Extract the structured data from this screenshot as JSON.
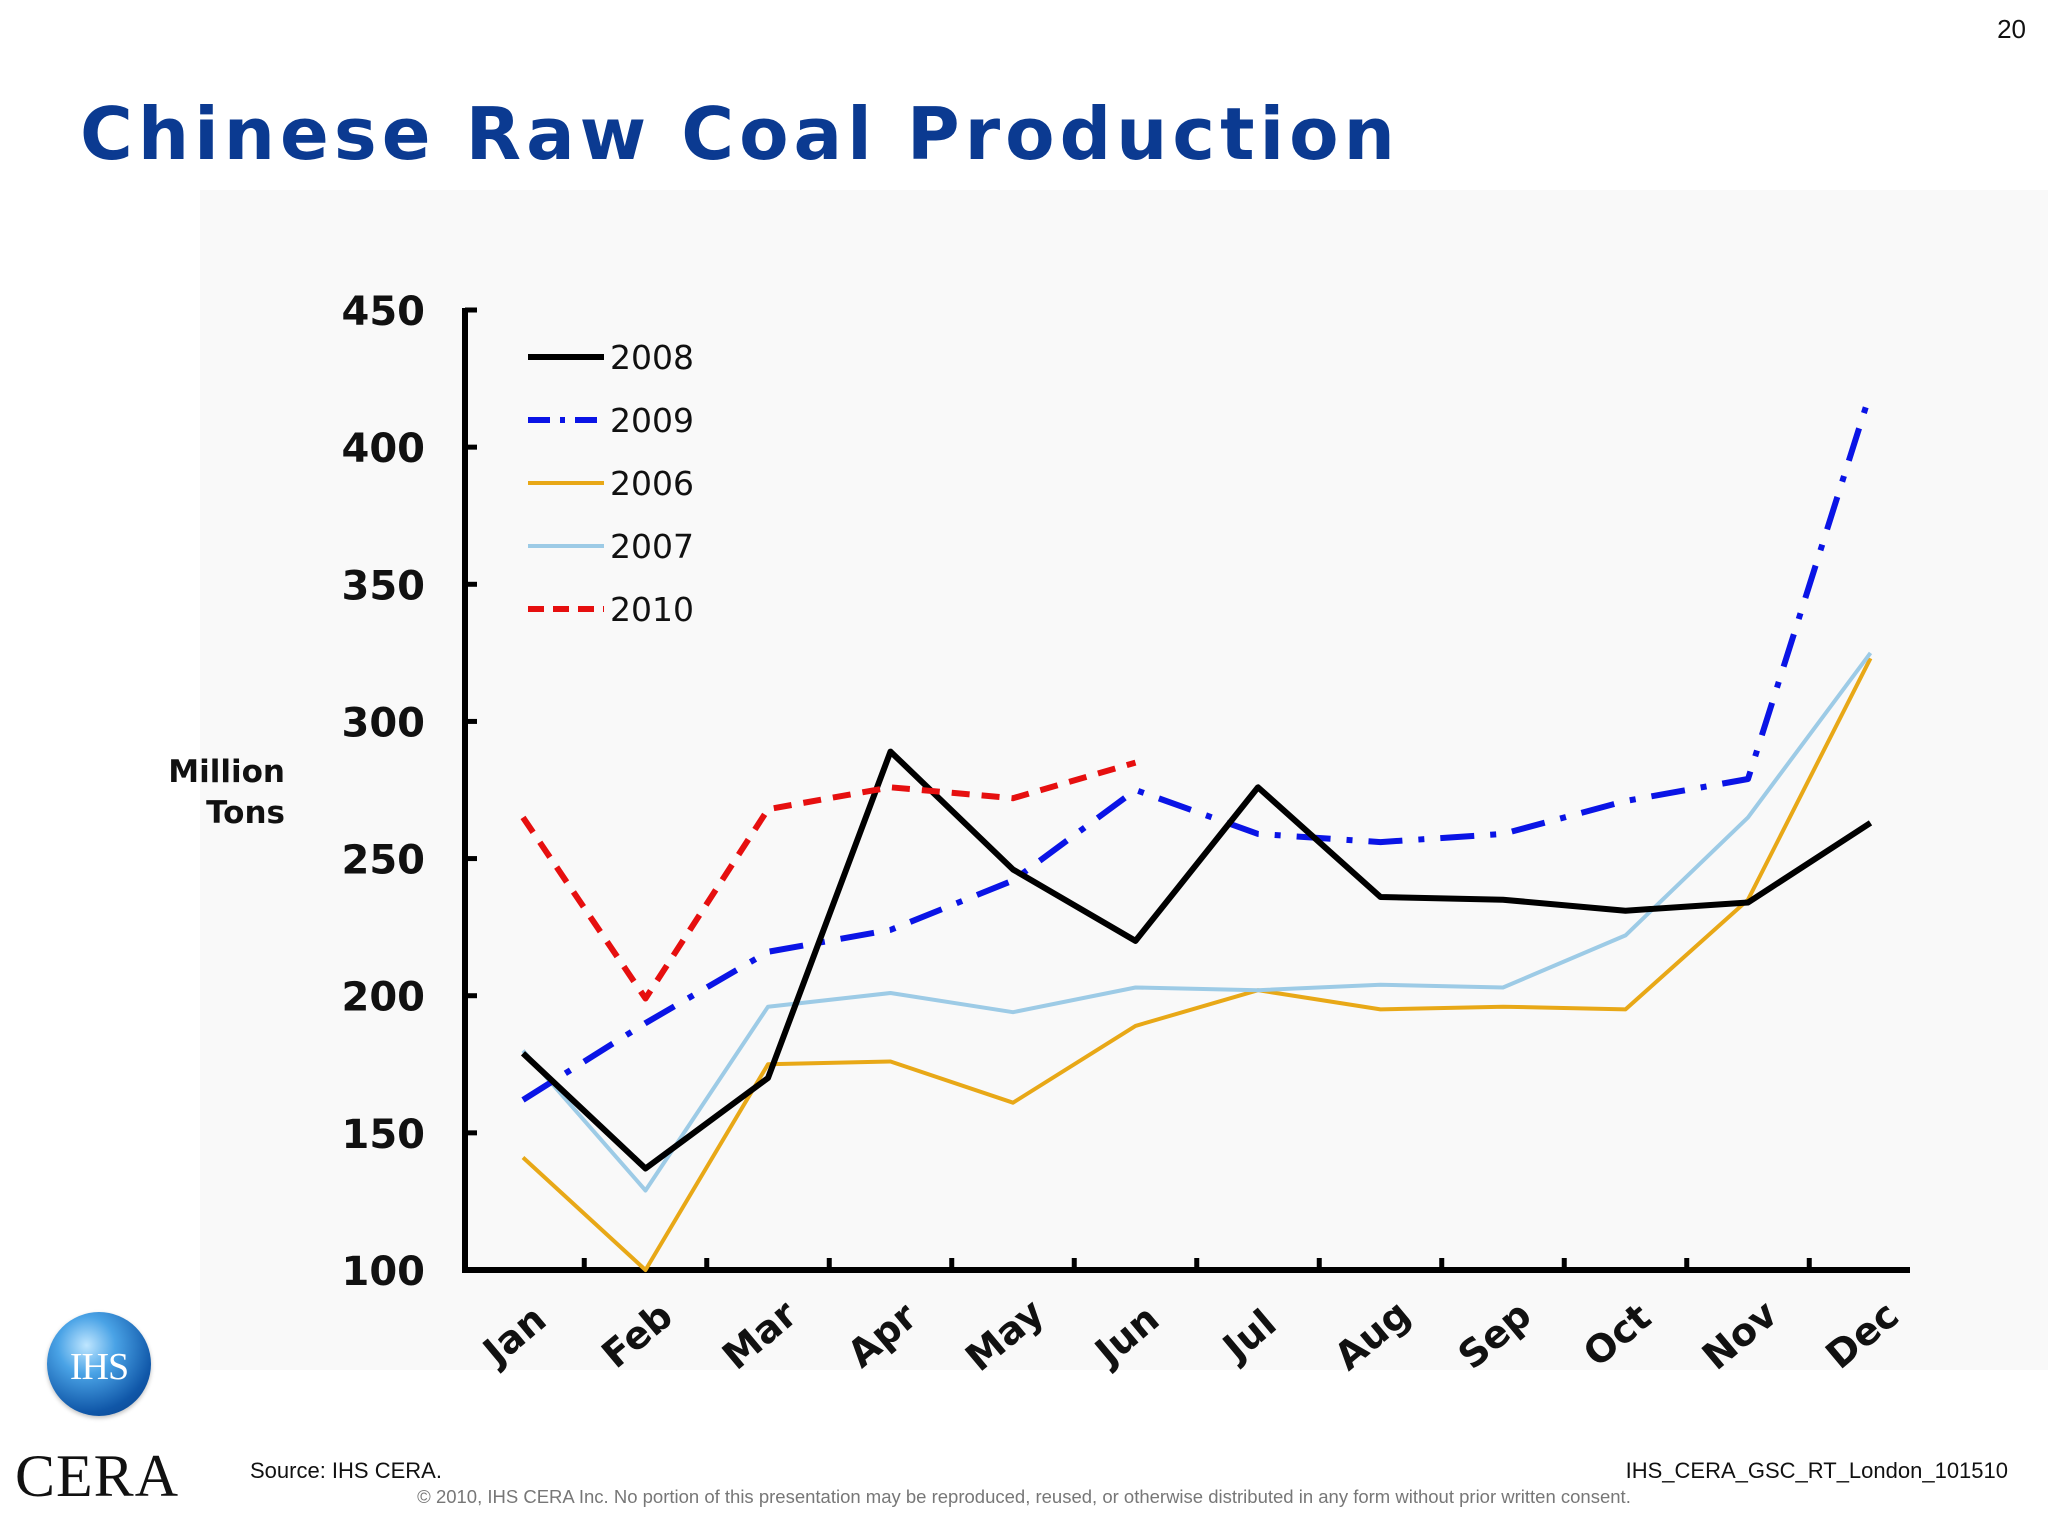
{
  "slide_number": "20",
  "title": "Chinese Raw Coal Production",
  "footer": {
    "source": "Source: IHS CERA.",
    "doc_id": "IHS_CERA_GSC_RT_London_101510",
    "copyright": "© 2010, IHS CERA Inc. No portion of this presentation may be reproduced, reused, or otherwise distributed in any form without prior written consent."
  },
  "logos": {
    "ihs_text": "IHS",
    "cera_text": "CERA"
  },
  "colors": {
    "title": "#0b3a91",
    "2008": "#000000",
    "2009": "#0a14e6",
    "2006": "#e8a817",
    "2007": "#9dcbe6",
    "2010": "#e60f0f"
  },
  "chart_data": {
    "type": "line",
    "title": "",
    "xlabel": "",
    "ylabel": "Million Tons",
    "ylim": [
      100,
      450
    ],
    "yticks": [
      100,
      150,
      200,
      250,
      300,
      350,
      400,
      450
    ],
    "grid": false,
    "legend_position": "top-left",
    "categories": [
      "Jan",
      "Feb",
      "Mar",
      "Apr",
      "May",
      "Jun",
      "Jul",
      "Aug",
      "Sep",
      "Oct",
      "Nov",
      "Dec"
    ],
    "series": [
      {
        "name": "2008",
        "color": "#000000",
        "style": "solid",
        "values": [
          179,
          137,
          170,
          289,
          246,
          220,
          276,
          236,
          235,
          231,
          234,
          263
        ]
      },
      {
        "name": "2009",
        "color": "#0a14e6",
        "style": "dash-dot",
        "values": [
          162,
          190,
          216,
          224,
          242,
          275,
          259,
          256,
          259,
          271,
          279,
          420
        ]
      },
      {
        "name": "2006",
        "color": "#e8a817",
        "style": "solid",
        "values": [
          141,
          100,
          175,
          176,
          161,
          189,
          202,
          195,
          196,
          195,
          235,
          323
        ]
      },
      {
        "name": "2007",
        "color": "#9dcbe6",
        "style": "solid",
        "values": [
          180,
          129,
          196,
          201,
          194,
          203,
          202,
          204,
          203,
          222,
          265,
          325
        ]
      },
      {
        "name": "2010",
        "color": "#e60f0f",
        "style": "dashed",
        "values": [
          265,
          199,
          268,
          276,
          272,
          285,
          null,
          null,
          null,
          null,
          null,
          null
        ]
      }
    ]
  }
}
